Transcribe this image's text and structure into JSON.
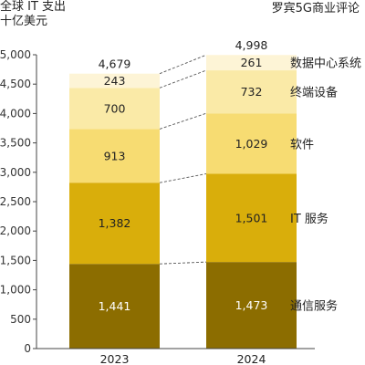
{
  "header": {
    "title_line1": "全球 IT 支出",
    "title_line2": "十亿美元",
    "source": "罗宾5G商业评论"
  },
  "chart_data": {
    "type": "bar",
    "stacked": true,
    "categories": [
      "2023",
      "2024"
    ],
    "series": [
      {
        "name": "通信服务",
        "values": [
          1441,
          1473
        ],
        "color": "#8c6d00",
        "label_color": "#ffffff"
      },
      {
        "name": "IT 服务",
        "values": [
          1382,
          1501
        ],
        "color": "#d9ae0b",
        "label_color": "#222222"
      },
      {
        "name": "软件",
        "values": [
          913,
          1029
        ],
        "color": "#f7dc72",
        "label_color": "#222222"
      },
      {
        "name": "终端设备",
        "values": [
          700,
          732
        ],
        "color": "#faeaa7",
        "label_color": "#222222"
      },
      {
        "name": "数据中心系统",
        "values": [
          243,
          261
        ],
        "color": "#fdf4d6",
        "label_color": "#222222"
      }
    ],
    "value_labels": [
      [
        "1,441",
        "1,473"
      ],
      [
        "1,382",
        "1,501"
      ],
      [
        "913",
        "1,029"
      ],
      [
        "700",
        "732"
      ],
      [
        "243",
        "261"
      ]
    ],
    "totals": [
      4679,
      4998
    ],
    "total_labels": [
      "4,679",
      "4,998"
    ],
    "ylim": [
      0,
      5000
    ],
    "y_ticks": [
      "0",
      "500",
      "1,000",
      "1,500",
      "2,000",
      "2,500",
      "3,000",
      "3,500",
      "4,000",
      "4,500",
      "5,000"
    ],
    "legend_position": "right",
    "grid": false,
    "connectors": "dashed"
  }
}
